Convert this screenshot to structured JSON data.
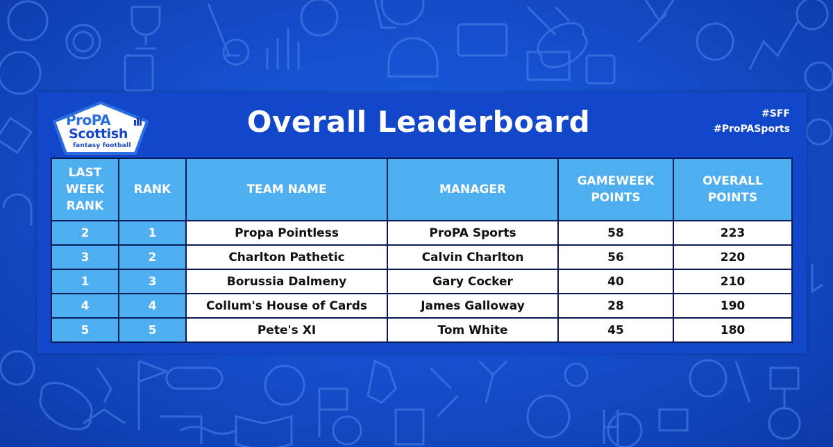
{
  "logo": {
    "brand": "ProPA",
    "title": "Scottish",
    "subtitle": "fantasy football"
  },
  "title": "Overall Leaderboard",
  "hashtags": [
    "#SFF",
    "#ProPASports"
  ],
  "table": {
    "headers": [
      "LAST WEEK RANK",
      "RANK",
      "TEAM NAME",
      "MANAGER",
      "GAMEWEEK POINTS",
      "OVERALL POINTS"
    ],
    "rows": [
      {
        "last_week_rank": "2",
        "rank": "1",
        "team": "Propa Pointless",
        "manager": "ProPA Sports",
        "gameweek_points": "58",
        "overall_points": "223"
      },
      {
        "last_week_rank": "3",
        "rank": "2",
        "team": "Charlton Pathetic",
        "manager": "Calvin Charlton",
        "gameweek_points": "56",
        "overall_points": "220"
      },
      {
        "last_week_rank": "1",
        "rank": "3",
        "team": "Borussia Dalmeny",
        "manager": "Gary Cocker",
        "gameweek_points": "40",
        "overall_points": "210"
      },
      {
        "last_week_rank": "4",
        "rank": "4",
        "team": "Collum's House of Cards",
        "manager": "James Galloway",
        "gameweek_points": "28",
        "overall_points": "190"
      },
      {
        "last_week_rank": "5",
        "rank": "5",
        "team": "Pete's XI",
        "manager": "Tom White",
        "gameweek_points": "45",
        "overall_points": "180"
      }
    ]
  },
  "colors": {
    "background": "#1550cf",
    "panel": "#1247c9",
    "header_cell": "#4eaef0",
    "border": "#061b55"
  }
}
